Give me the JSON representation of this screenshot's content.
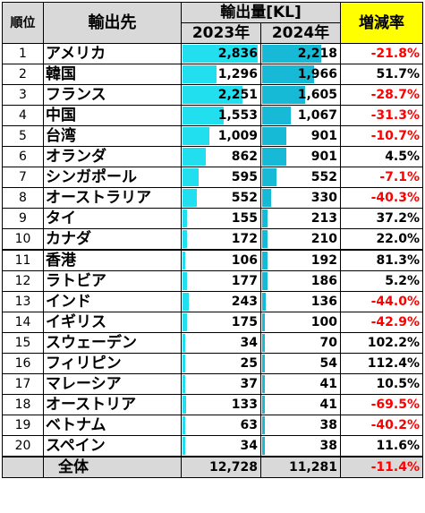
{
  "header": {
    "rank": "順位",
    "destination": "輸出先",
    "volume": "輸出量[KL]",
    "year_2023": "2023年",
    "year_2024": "2024年",
    "change_rate": "増減率"
  },
  "max_volume": 2836,
  "rows": [
    {
      "rank": "1",
      "country": "アメリカ",
      "v2023": 2836,
      "v2023_label": "2,836",
      "v2024": 2218,
      "v2024_label": "2,218",
      "rate": "-21.8%",
      "negative": true
    },
    {
      "rank": "2",
      "country": "韓国",
      "v2023": 1296,
      "v2023_label": "1,296",
      "v2024": 1966,
      "v2024_label": "1,966",
      "rate": "51.7%",
      "negative": false
    },
    {
      "rank": "3",
      "country": "フランス",
      "v2023": 2251,
      "v2023_label": "2,251",
      "v2024": 1605,
      "v2024_label": "1,605",
      "rate": "-28.7%",
      "negative": true
    },
    {
      "rank": "4",
      "country": "中国",
      "v2023": 1553,
      "v2023_label": "1,553",
      "v2024": 1067,
      "v2024_label": "1,067",
      "rate": "-31.3%",
      "negative": true
    },
    {
      "rank": "5",
      "country": "台湾",
      "v2023": 1009,
      "v2023_label": "1,009",
      "v2024": 901,
      "v2024_label": "901",
      "rate": "-10.7%",
      "negative": true
    },
    {
      "rank": "6",
      "country": "オランダ",
      "v2023": 862,
      "v2023_label": "862",
      "v2024": 901,
      "v2024_label": "901",
      "rate": "4.5%",
      "negative": false
    },
    {
      "rank": "7",
      "country": "シンガポール",
      "v2023": 595,
      "v2023_label": "595",
      "v2024": 552,
      "v2024_label": "552",
      "rate": "-7.1%",
      "negative": true
    },
    {
      "rank": "8",
      "country": "オーストラリア",
      "v2023": 552,
      "v2023_label": "552",
      "v2024": 330,
      "v2024_label": "330",
      "rate": "-40.3%",
      "negative": true
    },
    {
      "rank": "9",
      "country": "タイ",
      "v2023": 155,
      "v2023_label": "155",
      "v2024": 213,
      "v2024_label": "213",
      "rate": "37.2%",
      "negative": false
    },
    {
      "rank": "10",
      "country": "カナダ",
      "v2023": 172,
      "v2023_label": "172",
      "v2024": 210,
      "v2024_label": "210",
      "rate": "22.0%",
      "negative": false
    },
    {
      "rank": "11",
      "country": "香港",
      "v2023": 106,
      "v2023_label": "106",
      "v2024": 192,
      "v2024_label": "192",
      "rate": "81.3%",
      "negative": false
    },
    {
      "rank": "12",
      "country": "ラトビア",
      "v2023": 177,
      "v2023_label": "177",
      "v2024": 186,
      "v2024_label": "186",
      "rate": "5.2%",
      "negative": false
    },
    {
      "rank": "13",
      "country": "インド",
      "v2023": 243,
      "v2023_label": "243",
      "v2024": 136,
      "v2024_label": "136",
      "rate": "-44.0%",
      "negative": true
    },
    {
      "rank": "14",
      "country": "イギリス",
      "v2023": 175,
      "v2023_label": "175",
      "v2024": 100,
      "v2024_label": "100",
      "rate": "-42.9%",
      "negative": true
    },
    {
      "rank": "15",
      "country": "スウェーデン",
      "v2023": 34,
      "v2023_label": "34",
      "v2024": 70,
      "v2024_label": "70",
      "rate": "102.2%",
      "negative": false
    },
    {
      "rank": "16",
      "country": "フィリピン",
      "v2023": 25,
      "v2023_label": "25",
      "v2024": 54,
      "v2024_label": "54",
      "rate": "112.4%",
      "negative": false
    },
    {
      "rank": "17",
      "country": "マレーシア",
      "v2023": 37,
      "v2023_label": "37",
      "v2024": 41,
      "v2024_label": "41",
      "rate": "10.5%",
      "negative": false
    },
    {
      "rank": "18",
      "country": "オーストリア",
      "v2023": 133,
      "v2023_label": "133",
      "v2024": 41,
      "v2024_label": "41",
      "rate": "-69.5%",
      "negative": true
    },
    {
      "rank": "19",
      "country": "ベトナム",
      "v2023": 63,
      "v2023_label": "63",
      "v2024": 38,
      "v2024_label": "38",
      "rate": "-40.2%",
      "negative": true
    },
    {
      "rank": "20",
      "country": "スペイン",
      "v2023": 34,
      "v2023_label": "34",
      "v2024": 38,
      "v2024_label": "38",
      "rate": "11.6%",
      "negative": false
    }
  ],
  "total": {
    "label": "全体",
    "v2023_label": "12,728",
    "v2024_label": "11,281",
    "rate": "-11.4%",
    "negative": true
  },
  "colors": {
    "bar_2023": "#22dff0",
    "bar_2024": "#16b9d6",
    "negative_text": "#ff0000",
    "header_bg": "#d9d9d9",
    "rate_header_bg": "#ffff00"
  }
}
